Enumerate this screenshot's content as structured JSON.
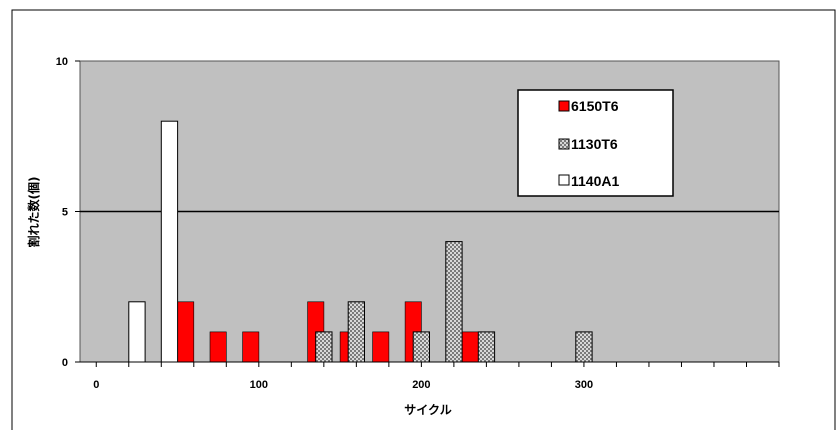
{
  "chart_data": {
    "type": "bar",
    "title": "",
    "xlabel": "サイクル",
    "ylabel": "割れた数(個)",
    "xlim": [
      -10,
      420
    ],
    "ylim": [
      0,
      10
    ],
    "x_ticks": [
      0,
      100,
      200,
      300
    ],
    "y_ticks": [
      0,
      5,
      10
    ],
    "grid": "horizontal line at 5",
    "legend_position": "top-right",
    "bar_width": 10,
    "colors": {
      "plot_bg": "#c0c0c0",
      "6150T6": "#ff0000",
      "1130T6": "#b8b8b8",
      "1140A1": "#ffffff"
    },
    "series": [
      {
        "name": "6150T6",
        "pattern": "solid-red",
        "points": [
          {
            "x": 55,
            "y": 2
          },
          {
            "x": 75,
            "y": 1
          },
          {
            "x": 95,
            "y": 1
          },
          {
            "x": 135,
            "y": 2
          },
          {
            "x": 155,
            "y": 1
          },
          {
            "x": 175,
            "y": 1
          },
          {
            "x": 195,
            "y": 2
          },
          {
            "x": 230,
            "y": 1
          }
        ]
      },
      {
        "name": "1130T6",
        "pattern": "checker-gray",
        "points": [
          {
            "x": 140,
            "y": 1
          },
          {
            "x": 160,
            "y": 2
          },
          {
            "x": 200,
            "y": 1
          },
          {
            "x": 220,
            "y": 4
          },
          {
            "x": 240,
            "y": 1
          },
          {
            "x": 300,
            "y": 1
          }
        ]
      },
      {
        "name": "1140A1",
        "pattern": "white",
        "points": [
          {
            "x": 25,
            "y": 2
          },
          {
            "x": 45,
            "y": 8
          }
        ]
      }
    ]
  }
}
